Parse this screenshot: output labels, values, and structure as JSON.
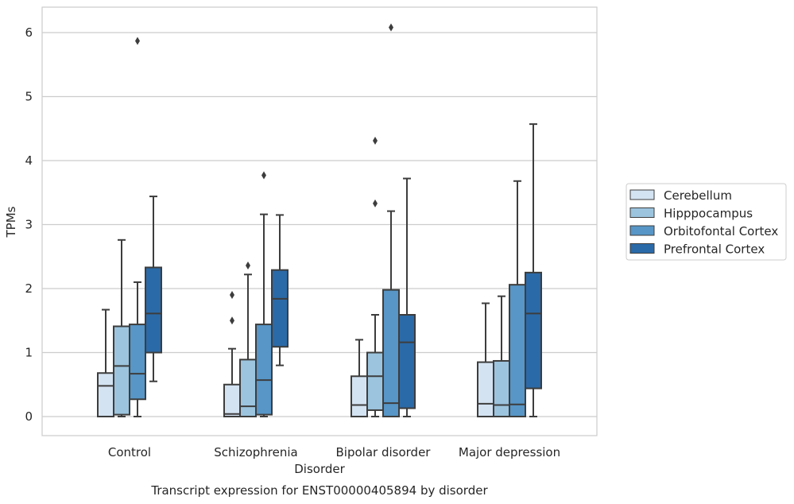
{
  "chart_data": {
    "type": "boxplot",
    "title": "Transcript expression for ENST00000405894 by disorder",
    "xlabel": "Disorder",
    "ylabel": "TPMs",
    "ylim": [
      -0.3,
      6.4
    ],
    "yticks": [
      0,
      1,
      2,
      3,
      4,
      5,
      6
    ],
    "grid": "horizontal",
    "legend_position": "right",
    "categories": [
      "Control",
      "Schizophrenia",
      "Bipolar disorder",
      "Major depression"
    ],
    "series": [
      {
        "name": "Cerebellum",
        "color": "#d4e3f2",
        "boxes": [
          {
            "whislo": 0.0,
            "q1": 0.0,
            "med": 0.48,
            "q3": 0.68,
            "whishi": 1.67,
            "fliers": []
          },
          {
            "whislo": 0.0,
            "q1": 0.0,
            "med": 0.04,
            "q3": 0.5,
            "whishi": 1.06,
            "fliers": [
              1.5,
              1.9
            ]
          },
          {
            "whislo": 0.0,
            "q1": 0.0,
            "med": 0.18,
            "q3": 0.63,
            "whishi": 1.2,
            "fliers": []
          },
          {
            "whislo": 0.0,
            "q1": 0.0,
            "med": 0.2,
            "q3": 0.85,
            "whishi": 1.77,
            "fliers": []
          }
        ]
      },
      {
        "name": "Hipppocampus",
        "color": "#9cc4de",
        "boxes": [
          {
            "whislo": 0.0,
            "q1": 0.03,
            "med": 0.79,
            "q3": 1.41,
            "whishi": 2.76,
            "fliers": []
          },
          {
            "whislo": 0.0,
            "q1": 0.0,
            "med": 0.16,
            "q3": 0.89,
            "whishi": 2.22,
            "fliers": [
              2.36
            ]
          },
          {
            "whislo": 0.0,
            "q1": 0.1,
            "med": 0.63,
            "q3": 1.0,
            "whishi": 1.59,
            "fliers": [
              3.33,
              4.31
            ]
          },
          {
            "whislo": 0.0,
            "q1": 0.0,
            "med": 0.18,
            "q3": 0.87,
            "whishi": 1.88,
            "fliers": []
          }
        ]
      },
      {
        "name": "Orbitofontal Cortex",
        "color": "#5796c7",
        "boxes": [
          {
            "whislo": 0.0,
            "q1": 0.27,
            "med": 0.67,
            "q3": 1.44,
            "whishi": 2.1,
            "fliers": [
              5.87
            ]
          },
          {
            "whislo": 0.0,
            "q1": 0.03,
            "med": 0.57,
            "q3": 1.44,
            "whishi": 3.16,
            "fliers": [
              3.77
            ]
          },
          {
            "whislo": 0.0,
            "q1": 0.0,
            "med": 0.21,
            "q3": 1.98,
            "whishi": 3.21,
            "fliers": [
              6.08
            ]
          },
          {
            "whislo": 0.0,
            "q1": 0.0,
            "med": 0.19,
            "q3": 2.06,
            "whishi": 3.68,
            "fliers": []
          }
        ]
      },
      {
        "name": "Prefrontal Cortex",
        "color": "#2b6aa8",
        "boxes": [
          {
            "whislo": 0.55,
            "q1": 1.0,
            "med": 1.61,
            "q3": 2.33,
            "whishi": 3.44,
            "fliers": []
          },
          {
            "whislo": 0.8,
            "q1": 1.09,
            "med": 1.84,
            "q3": 2.29,
            "whishi": 3.15,
            "fliers": []
          },
          {
            "whislo": 0.0,
            "q1": 0.13,
            "med": 1.16,
            "q3": 1.59,
            "whishi": 3.72,
            "fliers": []
          },
          {
            "whislo": 0.0,
            "q1": 0.44,
            "med": 1.61,
            "q3": 2.25,
            "whishi": 4.57,
            "fliers": []
          }
        ]
      }
    ]
  }
}
